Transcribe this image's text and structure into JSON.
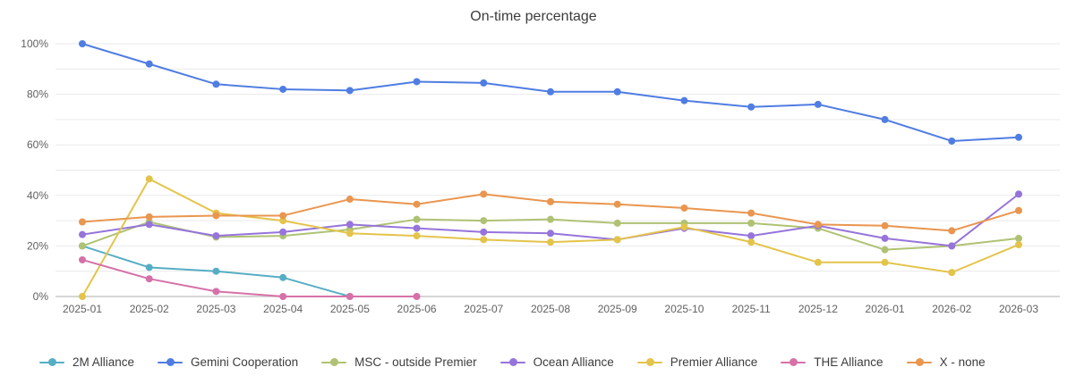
{
  "title": "On-time percentage",
  "colors": {
    "grid": "#e9e9e9",
    "axis_line": "#c9c9c9",
    "title_text": "#3c3c3c",
    "axis_text": "#616161",
    "legend_text": "#3c3c3c"
  },
  "chart_data": {
    "type": "line",
    "title": "On-time percentage",
    "xlabel": "",
    "ylabel": "",
    "ylim": [
      0,
      105
    ],
    "grid": true,
    "minor_grid_step_percent": 10,
    "legend_position": "bottom-left",
    "categories": [
      "2025-01",
      "2025-02",
      "2025-03",
      "2025-04",
      "2025-05",
      "2025-06",
      "2025-07",
      "2025-08",
      "2025-09",
      "2025-10",
      "2025-11",
      "2025-12",
      "2026-01",
      "2026-02",
      "2026-03"
    ],
    "y_ticks": [
      {
        "v": 0,
        "label": "0%"
      },
      {
        "v": 20,
        "label": "20%"
      },
      {
        "v": 40,
        "label": "40%"
      },
      {
        "v": 60,
        "label": "60%"
      },
      {
        "v": 80,
        "label": "80%"
      },
      {
        "v": 100,
        "label": "100%"
      }
    ],
    "series": [
      {
        "name": "2M Alliance",
        "color": "#56aec4",
        "values": [
          20,
          11.5,
          10,
          7.5,
          0,
          null,
          null,
          null,
          null,
          null,
          null,
          null,
          null,
          null,
          null
        ]
      },
      {
        "name": "Gemini Cooperation",
        "color": "#4f7de2",
        "values": [
          100,
          92,
          84,
          82,
          81.5,
          85,
          84.5,
          81,
          81,
          77.5,
          75,
          76,
          70,
          61.5,
          63
        ]
      },
      {
        "name": "MSC - outside Premier",
        "color": "#afc274",
        "values": [
          20,
          29.5,
          23.5,
          24,
          26.5,
          30.5,
          30,
          30.5,
          29,
          29,
          29,
          27,
          18.5,
          20,
          23
        ]
      },
      {
        "name": "Ocean Alliance",
        "color": "#9674db",
        "values": [
          24.5,
          28.5,
          24,
          25.5,
          28.5,
          27,
          25.5,
          25,
          22.5,
          27,
          24,
          28,
          23,
          20,
          40.5
        ]
      },
      {
        "name": "Premier Alliance",
        "color": "#e3c44a",
        "values": [
          0,
          46.5,
          33,
          30,
          25,
          24,
          22.5,
          21.5,
          22.5,
          27.5,
          21.5,
          13.5,
          13.5,
          9.5,
          20.5
        ]
      },
      {
        "name": "THE Alliance",
        "color": "#d671a8",
        "values": [
          14.5,
          7,
          2,
          0,
          0,
          0,
          null,
          null,
          null,
          null,
          null,
          null,
          null,
          null,
          null
        ]
      },
      {
        "name": "X - none",
        "color": "#e9964f",
        "values": [
          29.5,
          31.5,
          32,
          32,
          38.5,
          36.5,
          40.5,
          37.5,
          36.5,
          35,
          33,
          28.5,
          28,
          26,
          34
        ]
      }
    ]
  }
}
